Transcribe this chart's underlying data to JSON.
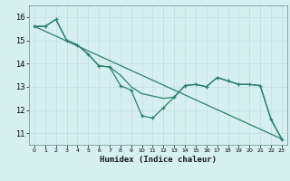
{
  "xlabel": "Humidex (Indice chaleur)",
  "bg_color": "#d6f0f0",
  "line_color": "#2e7d6e",
  "grid_color": "#c0dede",
  "xlim": [
    -0.5,
    23.5
  ],
  "ylim": [
    10.5,
    16.5
  ],
  "yticks": [
    11,
    12,
    13,
    14,
    15,
    16
  ],
  "xticks": [
    0,
    1,
    2,
    3,
    4,
    5,
    6,
    7,
    8,
    9,
    10,
    11,
    12,
    13,
    14,
    15,
    16,
    17,
    18,
    19,
    20,
    21,
    22,
    23
  ],
  "series_jagged_x": [
    0,
    1,
    2,
    3,
    4,
    5,
    6,
    7,
    8,
    9,
    10,
    11,
    12,
    13,
    14,
    15,
    16,
    17,
    18,
    19,
    20,
    21,
    22,
    23
  ],
  "series_jagged_y": [
    15.6,
    15.6,
    15.9,
    15.0,
    14.8,
    14.4,
    13.9,
    13.85,
    13.05,
    12.85,
    11.75,
    11.65,
    12.1,
    12.55,
    13.05,
    13.1,
    13.0,
    13.4,
    13.25,
    13.1,
    13.1,
    13.05,
    11.6,
    10.75
  ],
  "series_smooth_x": [
    0,
    1,
    2,
    3,
    4,
    5,
    6,
    7,
    8,
    9,
    10,
    11,
    12,
    13,
    14,
    15,
    16,
    17,
    18,
    19,
    20,
    21,
    22,
    23
  ],
  "series_smooth_y": [
    15.6,
    15.6,
    15.9,
    15.0,
    14.8,
    14.4,
    13.9,
    13.85,
    13.5,
    13.0,
    12.7,
    12.6,
    12.5,
    12.55,
    13.05,
    13.1,
    13.0,
    13.4,
    13.25,
    13.1,
    13.1,
    13.05,
    11.6,
    10.75
  ],
  "series_line_x": [
    0,
    23
  ],
  "series_line_y": [
    15.6,
    10.75
  ]
}
